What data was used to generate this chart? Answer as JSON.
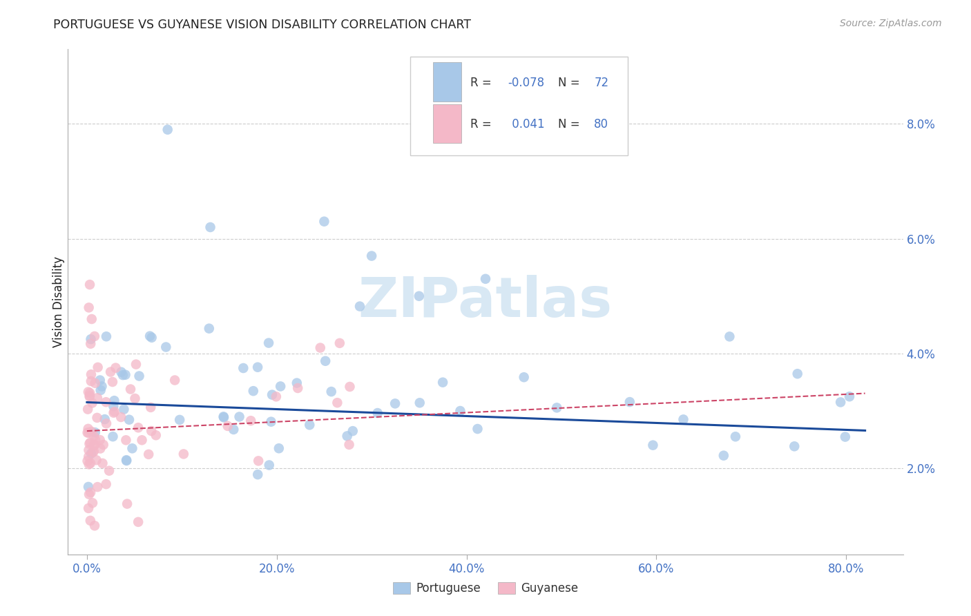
{
  "title": "PORTUGUESE VS GUYANESE VISION DISABILITY CORRELATION CHART",
  "source": "Source: ZipAtlas.com",
  "ylabel": "Vision Disability",
  "xlim": [
    -0.02,
    0.86
  ],
  "ylim": [
    0.005,
    0.093
  ],
  "xticks": [
    0.0,
    0.2,
    0.4,
    0.6,
    0.8
  ],
  "xticklabels": [
    "0.0%",
    "20.0%",
    "40.0%",
    "60.0%",
    "80.0%"
  ],
  "yticks": [
    0.02,
    0.04,
    0.06,
    0.08
  ],
  "yticklabels": [
    "2.0%",
    "4.0%",
    "6.0%",
    "8.0%"
  ],
  "legend_r_blue": "-0.078",
  "legend_n_blue": "72",
  "legend_r_pink": "0.041",
  "legend_n_pink": "80",
  "blue_dot_color": "#a8c8e8",
  "pink_dot_color": "#f4b8c8",
  "blue_line_color": "#1a4a9a",
  "pink_line_color": "#cc4466",
  "tick_color": "#4472c4",
  "text_dark": "#222222",
  "legend_value_color": "#4472c4",
  "watermark_color": "#d8e8f4",
  "grid_color": "#cccccc",
  "box_edge_color": "#cccccc"
}
